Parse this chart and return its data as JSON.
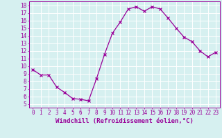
{
  "x": [
    0,
    1,
    2,
    3,
    4,
    5,
    6,
    7,
    8,
    9,
    10,
    11,
    12,
    13,
    14,
    15,
    16,
    17,
    18,
    19,
    20,
    21,
    22,
    23
  ],
  "y": [
    9.5,
    8.8,
    8.8,
    7.2,
    6.5,
    5.7,
    5.6,
    5.4,
    8.3,
    11.5,
    14.3,
    15.8,
    17.5,
    17.8,
    17.2,
    17.8,
    17.5,
    16.3,
    15.0,
    13.8,
    13.2,
    12.0,
    11.2,
    11.8
  ],
  "line_color": "#990099",
  "marker": "x",
  "marker_color": "#990099",
  "marker_size": 3,
  "xlabel": "Windchill (Refroidissement éolien,°C)",
  "ylim": [
    4.5,
    18.5
  ],
  "xlim": [
    -0.5,
    23.5
  ],
  "yticks": [
    5,
    6,
    7,
    8,
    9,
    10,
    11,
    12,
    13,
    14,
    15,
    16,
    17,
    18
  ],
  "xticks": [
    0,
    1,
    2,
    3,
    4,
    5,
    6,
    7,
    8,
    9,
    10,
    11,
    12,
    13,
    14,
    15,
    16,
    17,
    18,
    19,
    20,
    21,
    22,
    23
  ],
  "xtick_labels": [
    "0",
    "1",
    "2",
    "3",
    "4",
    "5",
    "6",
    "7",
    "8",
    "9",
    "10",
    "11",
    "12",
    "13",
    "14",
    "15",
    "16",
    "17",
    "18",
    "19",
    "20",
    "21",
    "22",
    "23"
  ],
  "bg_color": "#d6f0f0",
  "grid_color": "#ffffff",
  "tick_color": "#990099",
  "label_color": "#990099",
  "xlabel_fontsize": 6.5,
  "tick_fontsize": 5.5,
  "linewidth": 0.9
}
